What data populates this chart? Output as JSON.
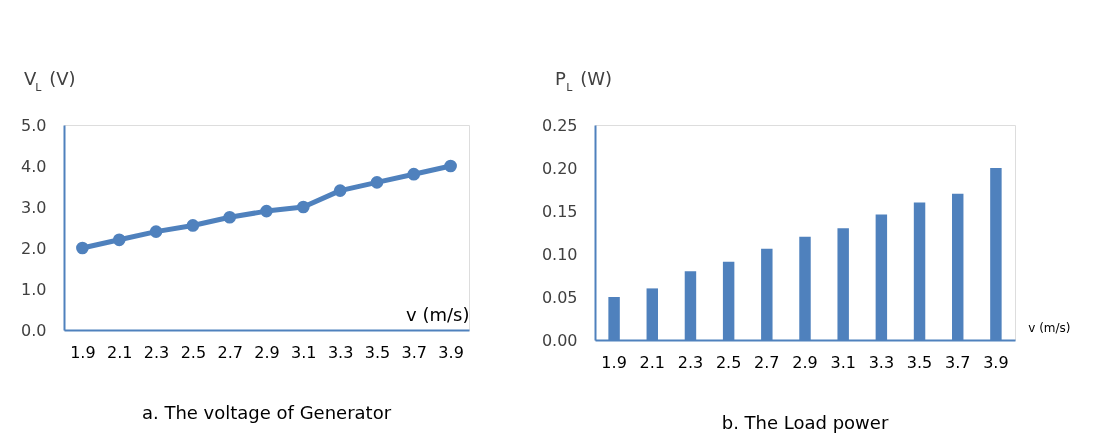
{
  "chart_data": [
    {
      "type": "line",
      "title": "a.   The voltage of Generator",
      "xlabel": "v (m/s)",
      "ylabel": "V$_{L}$ (V)",
      "categories": [
        "1.9",
        "2.1",
        "2.3",
        "2.5",
        "2.7",
        "2.9",
        "3.1",
        "3.3",
        "3.5",
        "3.7",
        "3.9"
      ],
      "series": [
        {
          "color": "#4f81bd",
          "values": [
            2.0,
            2.2,
            2.4,
            2.55,
            2.75,
            2.9,
            3.0,
            3.4,
            3.6,
            3.8,
            4.0
          ]
        }
      ],
      "ylim": [
        0,
        5
      ],
      "yticks": [
        {
          "value": 0,
          "label": "0.0"
        },
        {
          "value": 1,
          "label": "1.0"
        },
        {
          "value": 2,
          "label": "2.0"
        },
        {
          "value": 3,
          "label": "3.0"
        },
        {
          "value": 4,
          "label": "4.0"
        },
        {
          "value": 5,
          "label": "5.0"
        }
      ],
      "marker": "circle",
      "line_style": "solid",
      "grid": false
    },
    {
      "type": "bar",
      "title": "b.   The Load power",
      "xlabel": "v (m/s)",
      "ylabel": "P$_{L}$ (W)",
      "categories": [
        "1.9",
        "2.1",
        "2.3",
        "2.5",
        "2.7",
        "2.9",
        "3.1",
        "3.3",
        "3.5",
        "3.7",
        "3.9"
      ],
      "series": [
        {
          "color": "#4f81bd",
          "values": [
            0.05,
            0.06,
            0.08,
            0.091,
            0.106,
            0.12,
            0.13,
            0.146,
            0.16,
            0.17,
            0.2
          ]
        }
      ],
      "ylim": [
        0,
        0.25
      ],
      "yticks": [
        {
          "value": 0,
          "label": "0.00"
        },
        {
          "value": 0.05,
          "label": "0.05"
        },
        {
          "value": 0.1,
          "label": "0.10"
        },
        {
          "value": 0.15,
          "label": "0.15"
        },
        {
          "value": 0.2,
          "label": "0.20"
        },
        {
          "value": 0.25,
          "label": "0.25"
        }
      ],
      "grid": false
    }
  ]
}
